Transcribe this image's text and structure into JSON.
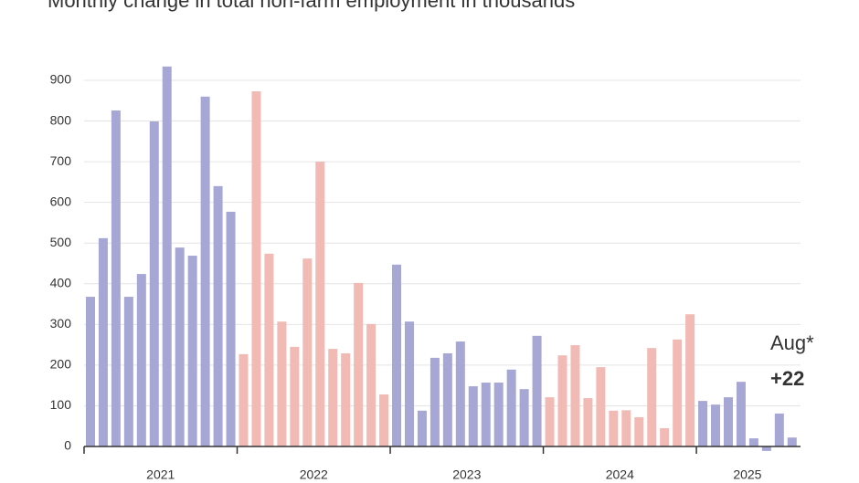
{
  "chart_data": {
    "type": "bar",
    "title": "Monthly change in total non-farm employment in thousands",
    "ylim": [
      0,
      900
    ],
    "yticks": [
      0,
      100,
      200,
      300,
      400,
      500,
      600,
      700,
      800,
      900
    ],
    "grid": true,
    "series": [
      {
        "name": "2021",
        "color": "#a7a7d6",
        "values": [
          368,
          512,
          826,
          368,
          424,
          799,
          934,
          489,
          469,
          860,
          640,
          577
        ]
      },
      {
        "name": "2022",
        "color": "#f2bab5",
        "values": [
          227,
          873,
          474,
          307,
          245,
          462,
          700,
          240,
          229,
          402,
          301,
          128
        ]
      },
      {
        "name": "2023",
        "color": "#a7a7d6",
        "values": [
          447,
          307,
          88,
          218,
          229,
          258,
          148,
          157,
          157,
          189,
          141,
          272
        ]
      },
      {
        "name": "2024",
        "color": "#f2bab5",
        "values": [
          121,
          224,
          249,
          119,
          195,
          88,
          89,
          72,
          242,
          45,
          263,
          325
        ]
      },
      {
        "name": "2025",
        "color": "#a7a7d6",
        "values": [
          112,
          103,
          121,
          159,
          20,
          -11,
          81,
          22
        ],
        "value_labels": [
          null,
          null,
          null,
          null,
          null,
          null,
          null,
          "+22"
        ]
      }
    ],
    "annotation": "Aug*"
  }
}
